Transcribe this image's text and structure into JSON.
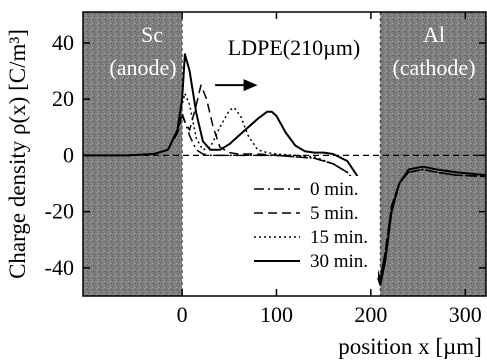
{
  "chart_data": {
    "type": "line",
    "title": "",
    "xlabel": "position x [µm]",
    "ylabel": "Charge density ρ(x) [C/m³]",
    "xlim": [
      -105,
      322
    ],
    "ylim": [
      -50,
      51
    ],
    "x_ticks": [
      0,
      100,
      200,
      300
    ],
    "y_ticks": [
      -40,
      -20,
      0,
      20,
      40
    ],
    "grid": false,
    "legend_position": "lower-center",
    "regions": [
      {
        "label_line1": "Sc",
        "label_line2": "(anode)",
        "x_start": -105,
        "x_end": 0,
        "shaded": true
      },
      {
        "label_line1": "LDPE(210µm)",
        "label_line2": "",
        "x_start": 0,
        "x_end": 210,
        "shaded": false
      },
      {
        "label_line1": "Al",
        "label_line2": "(cathode)",
        "x_start": 210,
        "x_end": 322,
        "shaded": true
      }
    ],
    "zero_line": true,
    "annotation_arrow": {
      "from": [
        35,
        25
      ],
      "to": [
        80,
        25
      ],
      "meaning": "charge packet moves toward cathode"
    },
    "series": [
      {
        "name": "0 min.",
        "dash": "dashdot",
        "x": [
          -105,
          -60,
          -30,
          -15,
          -5,
          0,
          3,
          8,
          15,
          22,
          30,
          45,
          60,
          80,
          100,
          120,
          140,
          160,
          175,
          185,
          193,
          198,
          203,
          207,
          210,
          215,
          222,
          230,
          240,
          255,
          270,
          290,
          322
        ],
        "y": [
          0,
          0,
          0.5,
          2,
          8,
          14,
          12,
          7,
          2,
          0.5,
          0,
          0,
          0,
          0,
          0,
          -0.5,
          -1,
          -3,
          -6,
          -10,
          -16,
          -24,
          -34,
          -41,
          -44,
          -35,
          -18,
          -10,
          -6,
          -5,
          -6,
          -7,
          -7.5
        ]
      },
      {
        "name": "5 min.",
        "dash": "dashed",
        "x": [
          -105,
          -60,
          -30,
          -15,
          -5,
          0,
          3,
          8,
          15,
          20,
          26,
          33,
          40,
          50,
          60,
          80,
          100,
          120,
          140,
          160,
          175,
          185,
          193,
          198,
          203,
          207,
          210,
          215,
          222,
          230,
          240,
          255,
          270,
          290,
          322
        ],
        "y": [
          0,
          0,
          0.5,
          2,
          8,
          15,
          12,
          9,
          18,
          25,
          20,
          10,
          3,
          1,
          0.5,
          0.5,
          0,
          -0.5,
          -1,
          -3,
          -6,
          -10,
          -16,
          -24,
          -34,
          -41,
          -44,
          -35,
          -18,
          -10,
          -6,
          -5,
          -6,
          -7,
          -7.5
        ]
      },
      {
        "name": "15 min.",
        "dash": "dotted",
        "x": [
          -105,
          -60,
          -30,
          -15,
          -5,
          0,
          3,
          8,
          15,
          22,
          30,
          40,
          50,
          55,
          62,
          70,
          80,
          90,
          100,
          120,
          140,
          160,
          175,
          185,
          193,
          198,
          203,
          207,
          210,
          215,
          222,
          230,
          240,
          255,
          270,
          290,
          322
        ],
        "y": [
          0,
          0,
          0.5,
          2,
          9,
          18,
          22,
          18,
          6,
          2,
          3,
          10,
          16,
          17,
          14,
          7,
          2,
          1,
          0.5,
          0,
          -0.5,
          -3,
          -6,
          -10,
          -16,
          -24,
          -34,
          -41,
          -44,
          -35,
          -18,
          -10,
          -6,
          -5,
          -6,
          -7,
          -7.5
        ]
      },
      {
        "name": "30 min.",
        "dash": "solid",
        "x": [
          -105,
          -60,
          -30,
          -15,
          -5,
          0,
          3,
          8,
          15,
          22,
          30,
          40,
          50,
          60,
          70,
          80,
          90,
          95,
          100,
          110,
          120,
          130,
          140,
          150,
          160,
          175,
          185,
          193,
          198,
          203,
          207,
          210,
          215,
          222,
          230,
          240,
          255,
          270,
          290,
          322
        ],
        "y": [
          0,
          0,
          0.5,
          2,
          9,
          20,
          36,
          30,
          15,
          5,
          2,
          2,
          4,
          7,
          10,
          13,
          15.5,
          15.5,
          14,
          8,
          3.5,
          1.5,
          1,
          1,
          0.5,
          -2,
          -7,
          -14,
          -23,
          -34,
          -43,
          -46,
          -38,
          -20,
          -10,
          -5,
          -4,
          -5,
          -6,
          -7
        ]
      }
    ]
  }
}
